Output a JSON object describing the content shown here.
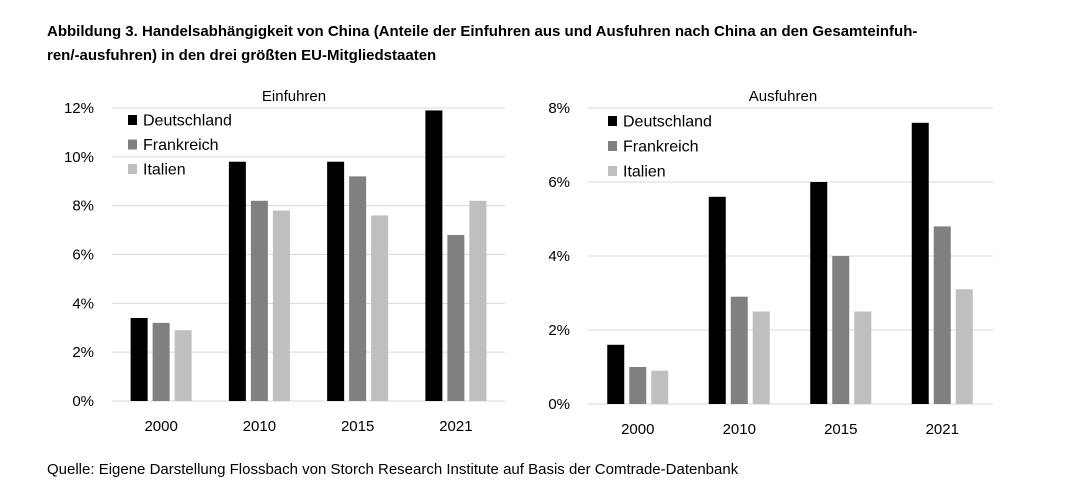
{
  "figure": {
    "title": "Abbildung 3. Handelsabhängigkeit von China (Anteile der Einfuhren aus und Ausfuhren nach China an den Gesamteinfuh-ren/-ausfuhren) in den drei größten EU-Mitgliedstaaten",
    "title_line1": "Abbildung 3. Handelsabhängigkeit von China (Anteile der Einfuhren aus und Ausfuhren nach China an den Gesamteinfuh-",
    "title_line2": "ren/-ausfuhren) in den drei größten EU-Mitgliedstaaten",
    "source": "Quelle: Eigene Darstellung Flossbach von Storch Research Institute auf Basis der Comtrade-Datenbank"
  },
  "colors": {
    "Deutschland": "#000000",
    "Frankreich": "#808080",
    "Italien": "#bfbfbf",
    "grid": "#d9d9d9"
  },
  "chart_data": [
    {
      "type": "bar",
      "title": "Einfuhren",
      "categories": [
        "2000",
        "2010",
        "2015",
        "2021"
      ],
      "series": [
        {
          "name": "Deutschland",
          "values": [
            3.4,
            9.8,
            9.8,
            11.9
          ]
        },
        {
          "name": "Frankreich",
          "values": [
            3.2,
            8.2,
            9.2,
            6.8
          ]
        },
        {
          "name": "Italien",
          "values": [
            2.9,
            7.8,
            7.6,
            8.2
          ]
        }
      ],
      "ylim": [
        0,
        12
      ],
      "yticks": [
        0,
        2,
        4,
        6,
        8,
        10,
        12
      ],
      "ytick_labels": [
        "0%",
        "2%",
        "4%",
        "6%",
        "8%",
        "10%",
        "12%"
      ],
      "grid": true,
      "legend": "top-left"
    },
    {
      "type": "bar",
      "title": "Ausfuhren",
      "categories": [
        "2000",
        "2010",
        "2015",
        "2021"
      ],
      "series": [
        {
          "name": "Deutschland",
          "values": [
            1.6,
            5.6,
            6.0,
            7.6
          ]
        },
        {
          "name": "Frankreich",
          "values": [
            1.0,
            2.9,
            4.0,
            4.8
          ]
        },
        {
          "name": "Italien",
          "values": [
            0.9,
            2.5,
            2.5,
            3.1
          ]
        }
      ],
      "ylim": [
        0,
        8
      ],
      "yticks": [
        0,
        2,
        4,
        6,
        8
      ],
      "ytick_labels": [
        "0%",
        "2%",
        "4%",
        "6%",
        "8%"
      ],
      "grid": true,
      "legend": "top-left"
    }
  ]
}
